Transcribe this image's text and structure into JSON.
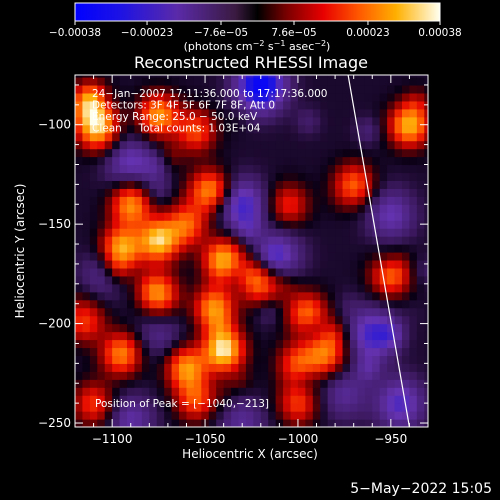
{
  "chart_data": {
    "type": "heatmap",
    "title": "Reconstructed RHESSI Image",
    "xlabel": "Heliocentric X (arcsec)",
    "ylabel": "Heliocentric Y (arcsec)",
    "xlim": [
      -1120,
      -930
    ],
    "ylim": [
      -252,
      -75
    ],
    "xticks": [
      -1100,
      -1050,
      -1000,
      -950
    ],
    "xtick_labels": [
      "−1100",
      "−1050",
      "−1000",
      "−950"
    ],
    "yticks": [
      -250,
      -200,
      -150,
      -100
    ],
    "ytick_labels": [
      "−250",
      "−200",
      "−150",
      "−100"
    ],
    "colorbar": {
      "range": [
        -0.00038,
        0.00038
      ],
      "ticks": [
        -0.00038,
        -0.00023,
        -7.6e-05,
        7.6e-05,
        0.00023,
        0.00038
      ],
      "tick_labels": [
        "−0.00038",
        "−0.00023",
        "−7.6e−05",
        "7.6e−05",
        "0.00023",
        "0.00038"
      ],
      "unit_prefix": "(photons cm",
      "unit_exp1": "−2",
      "unit_mid1": " s",
      "unit_exp2": "−1",
      "unit_mid2": " asec",
      "unit_exp3": "−2",
      "unit_suffix": ")"
    },
    "annotations": [
      "24−Jan−2007 17:11:36.000 to 17:17:36.000",
      "Detectors: 3F 4F 5F 6F 7F 8F, Att 0",
      "Energy Range: 25.0 − 50.0 keV",
      "Clean     Total counts: 1.03E+04"
    ],
    "peak_label": "Position of Peak = [−1040,−213]",
    "peak": [
      -1040,
      -213
    ],
    "limb_line": [
      [
        -973,
        -75
      ],
      [
        -940,
        -252
      ]
    ],
    "bright_sources": [
      [
        -1112,
        -90,
        0.7
      ],
      [
        -1108,
        -102,
        0.8
      ],
      [
        -1075,
        -95,
        0.75
      ],
      [
        -1055,
        -103,
        0.55
      ],
      [
        -940,
        -100,
        0.85
      ],
      [
        -1048,
        -133,
        0.7
      ],
      [
        -1090,
        -140,
        0.75
      ],
      [
        -1060,
        -150,
        0.6
      ],
      [
        -1075,
        -158,
        0.9
      ],
      [
        -1095,
        -162,
        0.85
      ],
      [
        -1040,
        -168,
        0.85
      ],
      [
        -1020,
        -180,
        0.6
      ],
      [
        -1075,
        -185,
        0.7
      ],
      [
        -1045,
        -192,
        0.75
      ],
      [
        -995,
        -195,
        0.65
      ],
      [
        -1040,
        -213,
        1.0
      ],
      [
        -1060,
        -222,
        0.75
      ],
      [
        -1095,
        -215,
        0.7
      ],
      [
        -1000,
        -220,
        0.55
      ],
      [
        -1055,
        -238,
        0.55
      ],
      [
        -1110,
        -240,
        0.5
      ],
      [
        -1000,
        -240,
        0.5
      ],
      [
        -985,
        -215,
        0.65
      ],
      [
        -970,
        -130,
        0.6
      ],
      [
        -950,
        -175,
        0.65
      ],
      [
        -1005,
        -140,
        0.45
      ],
      [
        -1115,
        -198,
        0.55
      ]
    ],
    "dark_sources": [
      [
        -1020,
        -80,
        0.9
      ],
      [
        -1090,
        -120,
        0.45
      ],
      [
        -1030,
        -140,
        0.55
      ],
      [
        -1010,
        -165,
        0.4
      ],
      [
        -960,
        -205,
        0.55
      ],
      [
        -945,
        -240,
        0.5
      ],
      [
        -1075,
        -205,
        0.25
      ],
      [
        -1090,
        -248,
        0.35
      ],
      [
        -950,
        -145,
        0.4
      ],
      [
        -1030,
        -250,
        0.3
      ],
      [
        -975,
        -235,
        0.3
      ],
      [
        -1105,
        -175,
        0.25
      ]
    ]
  },
  "footer": {
    "timestamp": "5−May−2022 15:05"
  }
}
